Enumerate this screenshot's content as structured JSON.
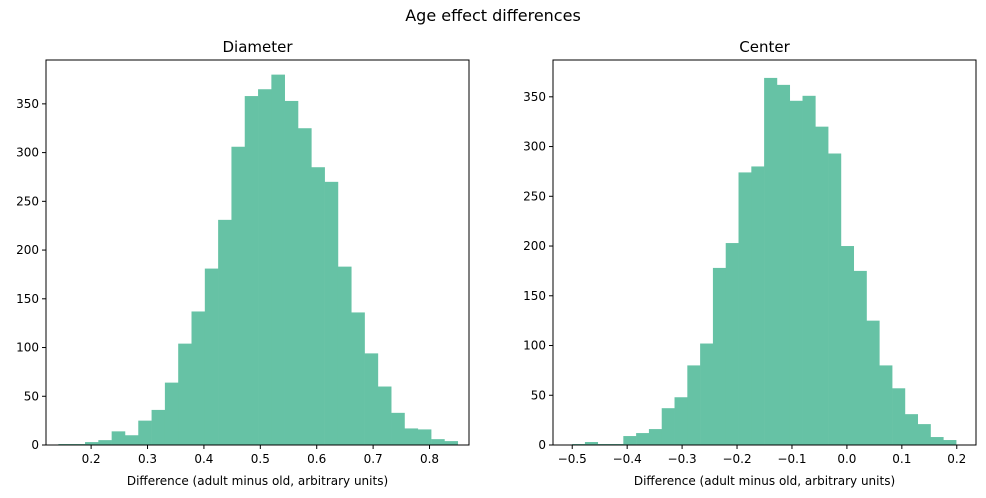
{
  "figure": {
    "suptitle": "Age effect differences",
    "bar_color": "#66c2a5"
  },
  "chart_data": [
    {
      "type": "bar",
      "title": "Diameter",
      "xlabel": "Difference (adult minus old, arbitrary units)",
      "ylabel": "",
      "xlim": [
        0.12,
        0.87
      ],
      "ylim": [
        0,
        395
      ],
      "xticks": [
        0.2,
        0.3,
        0.4,
        0.5,
        0.6,
        0.7,
        0.8
      ],
      "xtick_labels": [
        "0.2",
        "0.3",
        "0.4",
        "0.5",
        "0.6",
        "0.7",
        "0.8"
      ],
      "yticks": [
        0,
        50,
        100,
        150,
        200,
        250,
        300,
        350
      ],
      "ytick_labels": [
        "0",
        "50",
        "100",
        "150",
        "200",
        "250",
        "300",
        "350"
      ],
      "bin_width": 0.0236,
      "bin_starts": [
        0.142,
        0.1656,
        0.1892,
        0.2128,
        0.2364,
        0.26,
        0.2836,
        0.3072,
        0.3308,
        0.3544,
        0.378,
        0.4016,
        0.4252,
        0.4488,
        0.4724,
        0.496,
        0.5196,
        0.5432,
        0.5668,
        0.5904,
        0.614,
        0.6376,
        0.6612,
        0.6848,
        0.7084,
        0.732,
        0.7556,
        0.7792,
        0.8028,
        0.8264
      ],
      "values": [
        1,
        1,
        3,
        5,
        14,
        10,
        25,
        36,
        64,
        104,
        137,
        181,
        231,
        306,
        358,
        365,
        380,
        353,
        325,
        285,
        270,
        183,
        136,
        94,
        60,
        33,
        17,
        16,
        6,
        4
      ]
    },
    {
      "type": "bar",
      "title": "Center",
      "xlabel": "Difference (adult minus old, arbitrary units)",
      "ylabel": "",
      "xlim": [
        -0.535,
        0.235
      ],
      "ylim": [
        0,
        387
      ],
      "xticks": [
        -0.5,
        -0.4,
        -0.3,
        -0.2,
        -0.1,
        0.0,
        0.1,
        0.2
      ],
      "xtick_labels": [
        "−0.5",
        "−0.4",
        "−0.3",
        "−0.2",
        "−0.1",
        "0.0",
        "0.1",
        "0.2"
      ],
      "yticks": [
        0,
        50,
        100,
        150,
        200,
        250,
        300,
        350
      ],
      "ytick_labels": [
        "0",
        "50",
        "100",
        "150",
        "200",
        "250",
        "300",
        "350"
      ],
      "bin_width": 0.0233,
      "bin_starts": [
        -0.5002,
        -0.4769,
        -0.4536,
        -0.4303,
        -0.407,
        -0.3837,
        -0.3604,
        -0.3371,
        -0.3138,
        -0.2905,
        -0.2672,
        -0.2439,
        -0.2206,
        -0.1973,
        -0.174,
        -0.1507,
        -0.1274,
        -0.1041,
        -0.0808,
        -0.0575,
        -0.0342,
        -0.0109,
        0.0124,
        0.0357,
        0.059,
        0.0823,
        0.1056,
        0.1289,
        0.1522,
        0.1755
      ],
      "values": [
        1,
        3,
        1,
        1,
        9,
        12,
        16,
        37,
        48,
        80,
        102,
        178,
        203,
        274,
        280,
        369,
        362,
        346,
        351,
        320,
        293,
        200,
        175,
        125,
        80,
        57,
        31,
        21,
        8,
        5
      ]
    }
  ]
}
